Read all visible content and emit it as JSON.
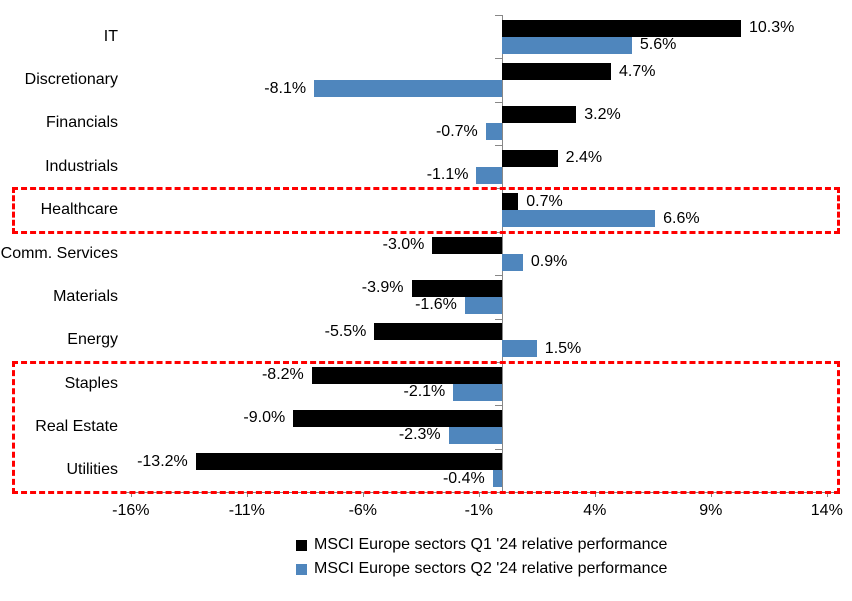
{
  "chart_data": {
    "type": "bar",
    "orientation": "horizontal",
    "title": "",
    "categories": [
      "IT",
      "Discretionary",
      "Financials",
      "Industrials",
      "Healthcare",
      "Comm. Services",
      "Materials",
      "Energy",
      "Staples",
      "Real Estate",
      "Utilities"
    ],
    "series": [
      {
        "name": "MSCI Europe sectors Q1 '24 relative performance",
        "color": "#000000",
        "values": [
          10.3,
          4.7,
          3.2,
          2.4,
          0.7,
          -3.0,
          -3.9,
          -5.5,
          -8.2,
          -9.0,
          -13.2
        ],
        "labels": [
          "10.3%",
          "4.7%",
          "3.2%",
          "2.4%",
          "0.7%",
          "-3.0%",
          "-3.9%",
          "-5.5%",
          "-8.2%",
          "-9.0%",
          "-13.2%"
        ]
      },
      {
        "name": "MSCI Europe sectors Q2 '24 relative performance",
        "color": "#4F86BD",
        "values": [
          5.6,
          -8.1,
          -0.7,
          -1.1,
          6.6,
          0.9,
          -1.6,
          1.5,
          -2.1,
          -2.3,
          -0.4
        ],
        "labels": [
          "5.6%",
          "-8.1%",
          "-0.7%",
          "-1.1%",
          "6.6%",
          "0.9%",
          "-1.6%",
          "1.5%",
          "-2.1%",
          "-2.3%",
          "-0.4%"
        ]
      }
    ],
    "x_axis": {
      "min": -16.4,
      "max": 14.5,
      "ticks": [
        -16,
        -11,
        -6,
        -1,
        4,
        9,
        14
      ],
      "tick_labels": [
        "-16%",
        "-11%",
        "-6%",
        "-1%",
        "4%",
        "9%",
        "14%"
      ]
    },
    "grid": false,
    "legend_position": "bottom",
    "axis_color": "#878787",
    "annotation_color": "#FF0000",
    "highlights": [
      {
        "name": "healthcare-highlight",
        "row_start": 4,
        "row_end": 4
      },
      {
        "name": "defensives-highlight",
        "row_start": 8,
        "row_end": 10
      }
    ]
  }
}
